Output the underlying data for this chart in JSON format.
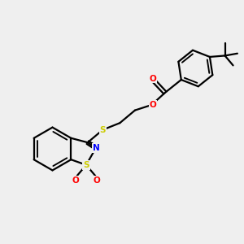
{
  "background_color": "#efefef",
  "line_color": "#000000",
  "bond_width": 1.6,
  "figsize": [
    3.0,
    3.0
  ],
  "dpi": 100,
  "atom_colors": {
    "O": "#ff0000",
    "N": "#0000ff",
    "S": "#cccc00"
  },
  "layout": {
    "xlim": [
      0,
      10
    ],
    "ylim": [
      0,
      10
    ]
  }
}
